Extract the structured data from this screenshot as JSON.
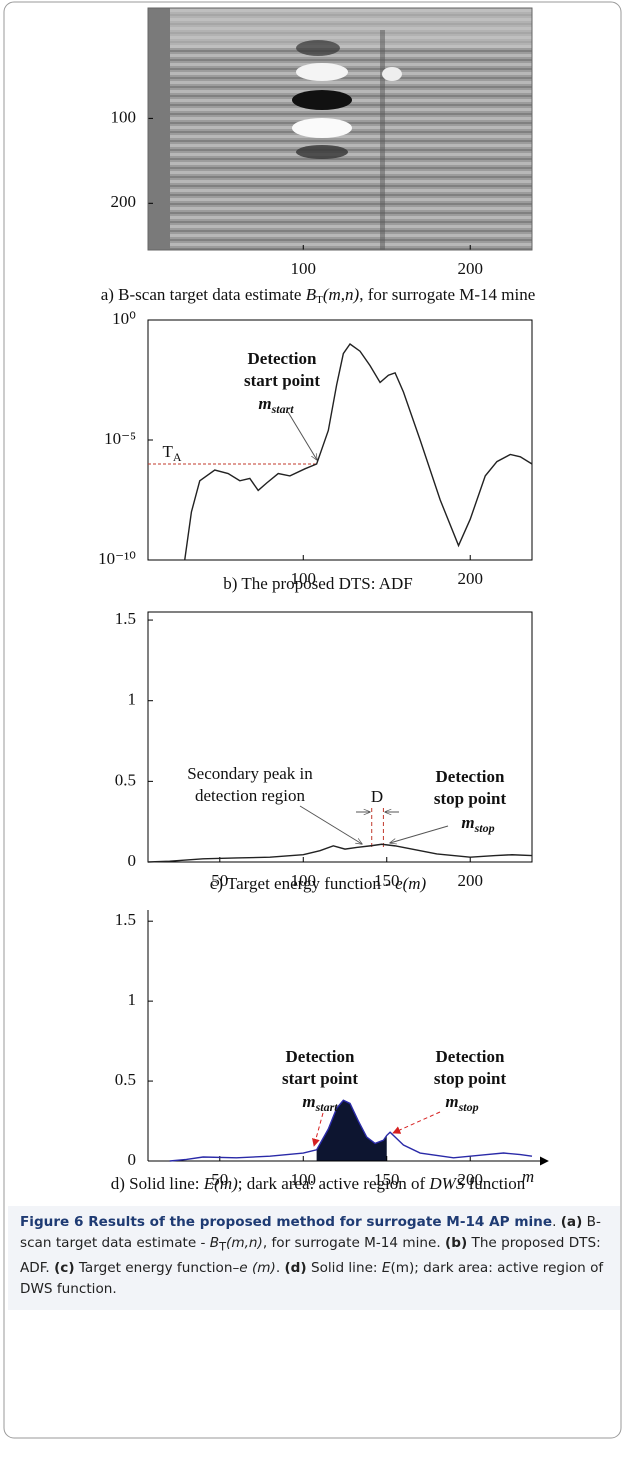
{
  "chart_data": [
    {
      "type": "image",
      "xlim": [
        7,
        237
      ],
      "ylim": [
        255,
        -30
      ],
      "xticks": [
        100,
        200
      ],
      "yticks": [
        100,
        200
      ],
      "caption": [
        "a) B-scan target data estimate ",
        "B",
        "T",
        "(m,n)",
        ", for surrogate M-14 mine"
      ]
    },
    {
      "type": "line",
      "log_y": true,
      "xlim": [
        7,
        237
      ],
      "ylim": [
        1e-10,
        1
      ],
      "xticks": [
        100,
        200
      ],
      "yticks": [
        {
          "value": 1e-10,
          "label": "10⁻¹⁰"
        },
        {
          "value": 1e-05,
          "label": "10⁻⁵"
        },
        {
          "value": 1,
          "label": "10⁰"
        }
      ],
      "series": [
        {
          "color": "#222222",
          "x": [
            29,
            33,
            38,
            47,
            55,
            62,
            68,
            73,
            78,
            85,
            92,
            101,
            108,
            115,
            120,
            124,
            128,
            134,
            140,
            146,
            151,
            155,
            160,
            170,
            182,
            193,
            200,
            209,
            216,
            224,
            230,
            237
          ],
          "values": [
            1e-10,
            1e-08,
            2e-07,
            5.6e-07,
            4e-07,
            2e-07,
            2.5e-07,
            7.9e-08,
            1.6e-07,
            4e-07,
            3.2e-07,
            6.3e-07,
            1e-06,
            2.5e-05,
            0.002,
            0.04,
            0.1,
            0.05,
            0.0126,
            0.0025,
            0.005,
            0.0063,
            0.001,
            1e-05,
            3.2e-08,
            4e-10,
            5e-09,
            3.2e-07,
            1.26e-06,
            2.5e-06,
            2e-06,
            1e-06
          ]
        }
      ],
      "threshold": {
        "value": 1e-06,
        "x_end": 108,
        "color": "#c0392b"
      },
      "annotations": [
        {
          "lines": [
            "Detection",
            "start point"
          ]
        },
        {
          "math": "m",
          "sub": "start"
        },
        {
          "math": "T",
          "sub": "A"
        }
      ],
      "caption": [
        "b) The proposed DTS: ADF"
      ]
    },
    {
      "type": "line",
      "xlim": [
        7,
        237
      ],
      "ylim": [
        0,
        1.55
      ],
      "xticks": [
        50,
        100,
        150,
        200
      ],
      "yticks": [
        0,
        0.5,
        1,
        1.5
      ],
      "series": [
        {
          "color": "#222222",
          "x": [
            7,
            20,
            40,
            60,
            80,
            100,
            110,
            118,
            125,
            132,
            140,
            147,
            155,
            165,
            180,
            200,
            215,
            225,
            237
          ],
          "values": [
            0,
            0.005,
            0.02,
            0.025,
            0.03,
            0.045,
            0.07,
            0.1,
            0.08,
            0.09,
            0.1,
            0.11,
            0.1,
            0.08,
            0.05,
            0.03,
            0.04,
            0.045,
            0.04
          ]
        }
      ],
      "markers": [
        141,
        148
      ],
      "marker_color": "#c0392b",
      "annotations": [
        {
          "lines": [
            "Secondary peak in",
            "detection region"
          ]
        },
        {
          "text": "D"
        },
        {
          "lines": [
            "Detection",
            "stop point"
          ]
        },
        {
          "math": "m",
          "sub": "stop"
        }
      ],
      "caption": [
        "c) Target energy function - ",
        "e(m)"
      ]
    },
    {
      "type": "line",
      "frame": false,
      "xlim": [
        7,
        237
      ],
      "ylim": [
        0,
        1.57
      ],
      "xticks": [
        50,
        100,
        150,
        200
      ],
      "yticks": [
        0,
        0.5,
        1,
        1.5
      ],
      "x_label": "m",
      "series": [
        {
          "color": "#2a2aa8",
          "x": [
            20,
            30,
            40,
            60,
            80,
            100,
            108,
            115,
            120,
            124,
            128,
            133,
            138,
            143,
            148,
            150,
            152,
            160,
            170,
            190,
            210,
            220,
            230,
            237
          ],
          "values": [
            0,
            0.01,
            0.025,
            0.02,
            0.03,
            0.05,
            0.07,
            0.2,
            0.33,
            0.38,
            0.36,
            0.25,
            0.15,
            0.11,
            0.13,
            0.16,
            0.18,
            0.1,
            0.05,
            0.02,
            0.04,
            0.05,
            0.04,
            0.03
          ]
        }
      ],
      "active_region": [
        108,
        150
      ],
      "region_color": "#0d1530",
      "annotations": [
        {
          "lines": [
            "Detection",
            "start point"
          ]
        },
        {
          "lines": [
            "Detection",
            "stop point"
          ]
        },
        {
          "math": "m",
          "sub": "start"
        },
        {
          "math": "m",
          "sub": "stop"
        }
      ],
      "caption": [
        "d) Solid line: ",
        "E(m)",
        "; dark area: active region of ",
        "DWS",
        " function"
      ]
    }
  ],
  "figure_caption": {
    "title": "Figure 6 Results of the proposed method for surrogate M-14 AP mine",
    "title_end": ".",
    "items": [
      {
        "label": "(a)",
        "parts": [
          "B-scan target data estimate - ",
          "B",
          "T",
          "(m,n)",
          ", for surrogate M-14 mine."
        ]
      },
      {
        "label": "(b)",
        "parts": [
          "The proposed DTS: ADF."
        ]
      },
      {
        "label": "(c)",
        "parts": [
          "Target energy function–",
          "e (m)",
          "."
        ]
      },
      {
        "label": "(d)",
        "parts": [
          "Solid line: ",
          "E",
          "(m); dark area: active region of DWS function."
        ]
      }
    ]
  }
}
